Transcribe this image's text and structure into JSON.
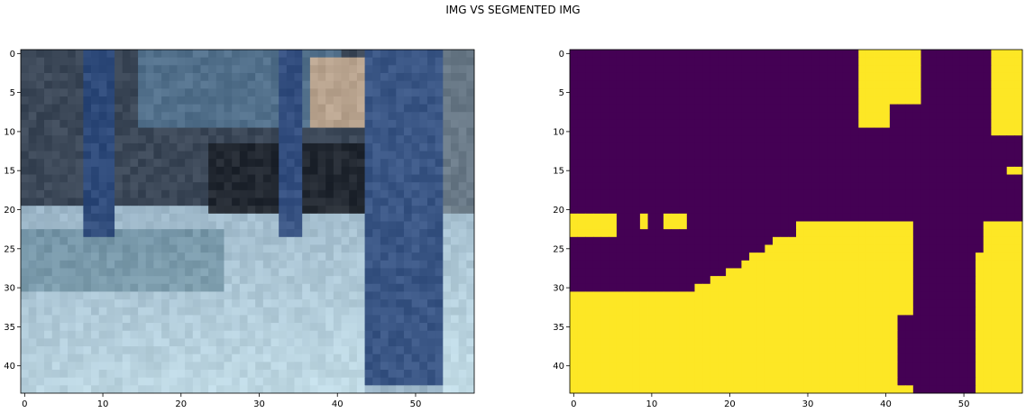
{
  "figure": {
    "title": "IMG VS SEGMENTED IMG"
  },
  "chart_data": [
    {
      "type": "heatmap",
      "name": "original-image-panel",
      "rows": 44,
      "cols": 58,
      "xticks": [
        0,
        10,
        20,
        30,
        40,
        50
      ],
      "yticks": [
        0,
        5,
        10,
        15,
        20,
        25,
        30,
        35,
        40
      ],
      "xlim": [
        -0.5,
        57.5
      ],
      "ylim": [
        43.5,
        -0.5
      ],
      "regions": [
        {
          "label": "dark-blue-gray background wall",
          "rows": [
            0,
            20
          ],
          "cols": [
            0,
            57
          ],
          "color": "#3c4858"
        },
        {
          "label": "floor",
          "rows": [
            20,
            43
          ],
          "cols": [
            0,
            57
          ],
          "color": "#9cb6c8"
        },
        {
          "label": "floor shadow left",
          "rows": [
            23,
            30
          ],
          "cols": [
            0,
            25
          ],
          "color": "#6f8fa2"
        },
        {
          "label": "blue ceiling beam",
          "rows": [
            0,
            9
          ],
          "cols": [
            15,
            40
          ],
          "color": "#52708b"
        },
        {
          "label": "person beige",
          "rows": [
            1,
            9
          ],
          "cols": [
            37,
            44
          ],
          "color": "#b8a38e"
        },
        {
          "label": "dark shadow middle",
          "rows": [
            12,
            20
          ],
          "cols": [
            24,
            48
          ],
          "color": "#222831"
        },
        {
          "label": "pillar far left",
          "rows": [
            0,
            23
          ],
          "cols": [
            8,
            11
          ],
          "color": "#2e4a7a"
        },
        {
          "label": "pillar middle",
          "rows": [
            0,
            23
          ],
          "cols": [
            33,
            35
          ],
          "color": "#344f80"
        },
        {
          "label": "large pillar right",
          "rows": [
            0,
            42
          ],
          "cols": [
            44,
            53
          ],
          "color": "#3a5685"
        },
        {
          "label": "right edge bright",
          "rows": [
            0,
            20
          ],
          "cols": [
            54,
            57
          ],
          "color": "#6a7a88"
        }
      ]
    },
    {
      "type": "heatmap",
      "name": "segmented-image-panel",
      "rows": 44,
      "cols": 58,
      "colors": {
        "background": "#440154",
        "foreground": "#fde725"
      },
      "xticks": [
        0,
        10,
        20,
        30,
        40,
        50
      ],
      "yticks": [
        0,
        5,
        10,
        15,
        20,
        25,
        30,
        35,
        40
      ],
      "xlim": [
        -0.5,
        57.5
      ],
      "ylim": [
        43.5,
        -0.5
      ],
      "foreground_cells": {
        "top_right_block": {
          "rows": [
            0,
            6
          ],
          "cols": [
            37,
            45
          ]
        },
        "top_far_right": {
          "rows": [
            0,
            10
          ],
          "cols": [
            54,
            57
          ]
        },
        "left_band": {
          "rows": [
            21,
            23
          ],
          "cols": [
            0,
            5
          ]
        },
        "small_blocks": [
          [
            21,
            9
          ],
          [
            22,
            9
          ],
          [
            21,
            12
          ],
          [
            21,
            13
          ],
          [
            22,
            12
          ],
          [
            22,
            13
          ],
          [
            21,
            14
          ],
          [
            22,
            14
          ]
        ],
        "floor_boundary_first_yellow_col_per_row": {
          "22": 29,
          "23": 29,
          "24": 26,
          "25": 25,
          "26": 23,
          "27": 22,
          "28": 20,
          "29": 18,
          "30": 16,
          "31": 0
        },
        "right_dark_pillar_cols_per_row": {
          "22": [
            44,
            52
          ],
          "26": [
            44,
            51
          ],
          "30": [
            44,
            51
          ],
          "34": [
            42,
            50
          ],
          "37": [
            42,
            50
          ],
          "40": [
            42,
            49
          ],
          "42": [
            42,
            49
          ],
          "43": [
            46,
            49
          ]
        }
      }
    }
  ]
}
